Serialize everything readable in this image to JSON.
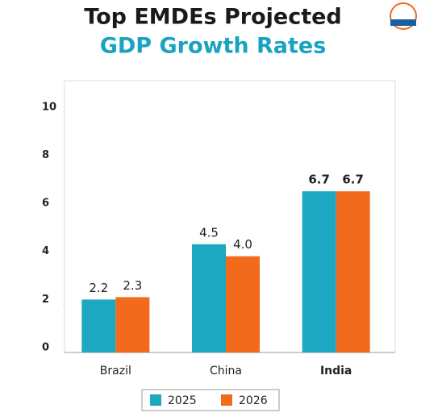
{
  "chart_data": {
    "type": "bar",
    "title": "Top EMDEs Projected",
    "subtitle": "GDP Growth Rates",
    "categories": [
      "Brazil",
      "China",
      "India"
    ],
    "series": [
      {
        "name": "2025",
        "color": "#1ba8c0",
        "values": [
          2.2,
          4.5,
          6.7
        ]
      },
      {
        "name": "2026",
        "color": "#f26a1b",
        "values": [
          2.3,
          4.0,
          6.7
        ],
        "value_labels": [
          "2.3",
          "4.0",
          "6.7"
        ]
      }
    ],
    "ylim": [
      0,
      11.3
    ],
    "yticks": [
      0,
      2,
      4,
      6,
      8,
      10
    ],
    "grid": false,
    "legend": "bottom"
  }
}
